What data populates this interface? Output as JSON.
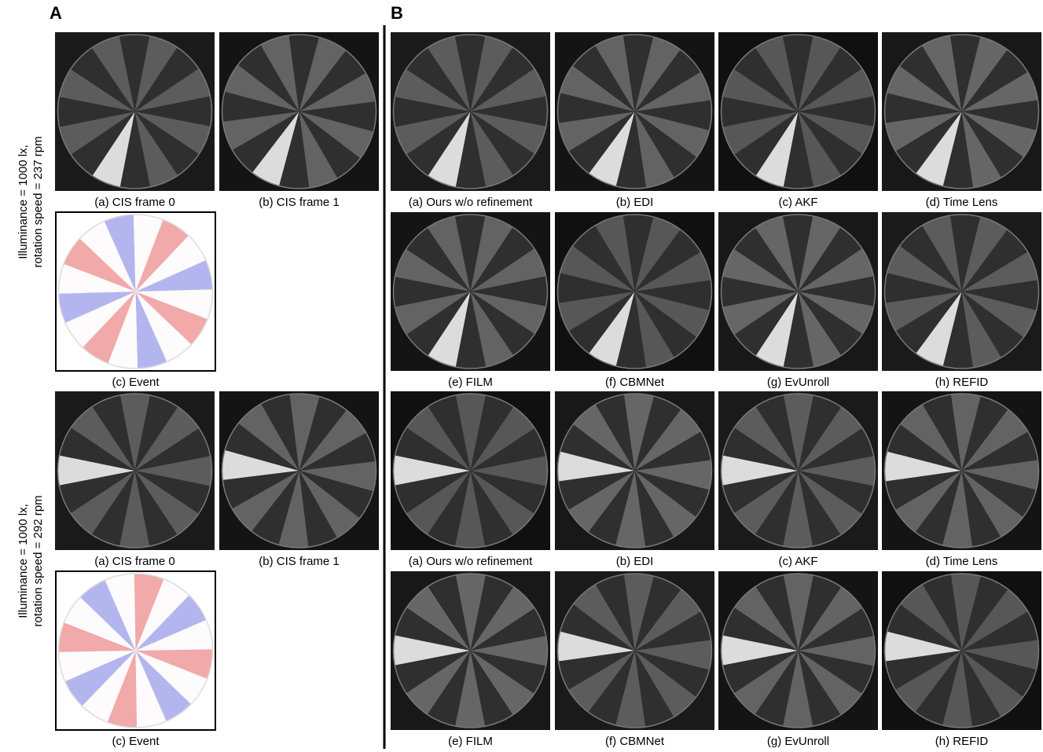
{
  "panel_a": {
    "label": "A",
    "groups": [
      {
        "row_label": [
          "Illuminance = 1000 lx,",
          "rotation speed = 237 rpm"
        ],
        "captions": [
          "(a) CIS frame 0",
          "(b) CIS frame 1",
          "(c) Event"
        ]
      },
      {
        "row_label": [
          "Illuminance = 1000 lx,",
          "rotation speed = 292 rpm"
        ],
        "captions": [
          "(a) CIS frame 0",
          "(b) CIS frame 1",
          "(c) Event"
        ]
      }
    ]
  },
  "panel_b": {
    "label": "B",
    "rows": [
      [
        "(a) Ours w/o refinement",
        "(b) EDI",
        "(c) AKF",
        "(d) Time Lens"
      ],
      [
        "(e) FILM",
        "(f) CBMNet",
        "(g) EvUnroll",
        "(h) REFID"
      ],
      [
        "(a) Ours w/o refinement",
        "(b) EDI",
        "(c) AKF",
        "(d) Time Lens"
      ],
      [
        "(e) FILM",
        "(f) CBMNet",
        "(g) EvUnroll",
        "(h) REFID"
      ]
    ]
  }
}
